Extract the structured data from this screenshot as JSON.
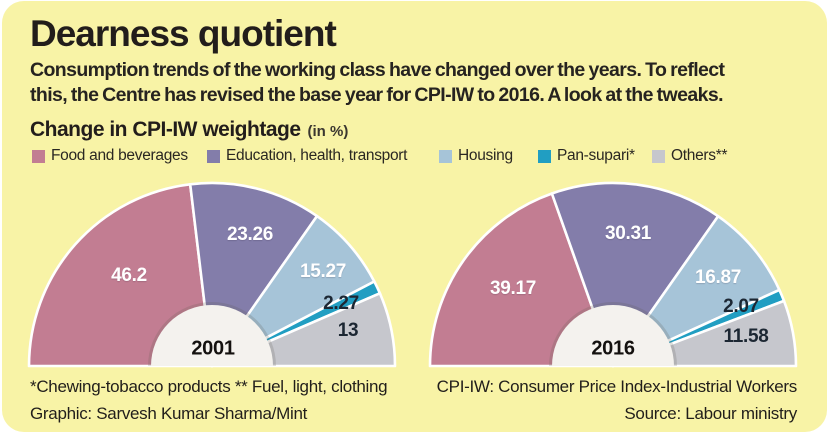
{
  "card": {
    "title": "Dearness quotient",
    "subtitle_lines": [
      "Consumption trends of the working class have changed over the years. To reflect",
      "this, the Centre has revised the base year for CPI-IW to 2016. A look at the tweaks."
    ],
    "section_title": "Change in CPI-IW weightage",
    "section_unit": "(in %)"
  },
  "style": {
    "card_background": "#f8f3a6",
    "center_dome": "#f4f2ee",
    "white_label": "#ffffff",
    "dark_label": "#1c2733"
  },
  "legend": [
    {
      "label": "Food and beverages",
      "color": "#c27d92"
    },
    {
      "label": "Education, health, transport",
      "color": "#837daa"
    },
    {
      "label": "Housing",
      "color": "#a6c4d8"
    },
    {
      "label": "Pan-supari*",
      "color": "#219ec2"
    },
    {
      "label": "Others**",
      "color": "#c6c7cd"
    }
  ],
  "chart_data": [
    {
      "type": "pie",
      "variant": "semicircle-donut",
      "year": "2001",
      "unit": "%",
      "total": 100,
      "categories": [
        "Food and beverages",
        "Education, health, transport",
        "Housing",
        "Pan-supari*",
        "Others**"
      ],
      "values": [
        46.2,
        23.26,
        15.27,
        2.27,
        13
      ]
    },
    {
      "type": "pie",
      "variant": "semicircle-donut",
      "year": "2016",
      "unit": "%",
      "total": 100,
      "categories": [
        "Food and beverages",
        "Education, health, transport",
        "Housing",
        "Pan-supari*",
        "Others**"
      ],
      "values": [
        39.17,
        30.31,
        16.87,
        2.07,
        11.58
      ]
    }
  ],
  "footnotes": {
    "left_line1": "*Chewing-tobacco products ** Fuel, light, clothing",
    "left_line2": "Graphic: Sarvesh Kumar Sharma/Mint",
    "right_line1": "CPI-IW: Consumer Price Index-Industrial Workers",
    "right_line2": "Source: Labour ministry"
  }
}
